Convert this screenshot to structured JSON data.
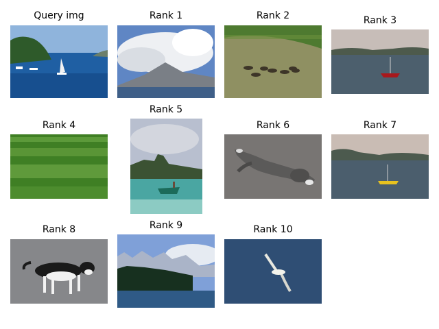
{
  "figure": {
    "items": [
      {
        "label": "Query img"
      },
      {
        "label": "Rank 1"
      },
      {
        "label": "Rank 2"
      },
      {
        "label": "Rank 3"
      },
      {
        "label": "Rank 4"
      },
      {
        "label": "Rank 5"
      },
      {
        "label": "Rank 6"
      },
      {
        "label": "Rank 7"
      },
      {
        "label": "Rank 8"
      },
      {
        "label": "Rank 9"
      },
      {
        "label": "Rank 10"
      }
    ]
  }
}
